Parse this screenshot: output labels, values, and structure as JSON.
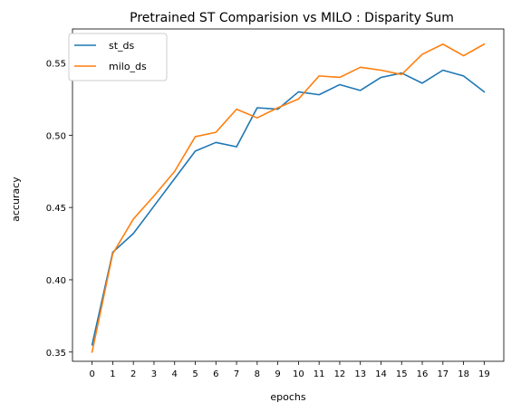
{
  "chart_data": {
    "type": "line",
    "title": "Pretrained ST Comparision vs MILO : Disparity Sum",
    "xlabel": "epochs",
    "ylabel": "accuracy",
    "x": [
      0,
      1,
      2,
      3,
      4,
      5,
      6,
      7,
      8,
      9,
      10,
      11,
      12,
      13,
      14,
      15,
      16,
      17,
      18,
      19
    ],
    "xticks": [
      "0",
      "1",
      "2",
      "3",
      "4",
      "5",
      "6",
      "7",
      "8",
      "9",
      "10",
      "11",
      "12",
      "13",
      "14",
      "15",
      "16",
      "17",
      "18",
      "19"
    ],
    "yticks": [
      0.35,
      0.4,
      0.45,
      0.5,
      0.55
    ],
    "ytick_labels": [
      "0.35",
      "0.40",
      "0.45",
      "0.50",
      "0.55"
    ],
    "xlim": [
      -0.95,
      19.95
    ],
    "ylim": [
      0.3436,
      0.5735
    ],
    "grid": false,
    "legend_position": "top-left",
    "series": [
      {
        "name": "st_ds",
        "color": "#1f77b4",
        "values": [
          0.355,
          0.419,
          0.432,
          0.451,
          0.47,
          0.489,
          0.495,
          0.492,
          0.519,
          0.518,
          0.53,
          0.528,
          0.535,
          0.531,
          0.54,
          0.543,
          0.536,
          0.545,
          0.541,
          0.53
        ]
      },
      {
        "name": "milo_ds",
        "color": "#ff7f0e",
        "values": [
          0.35,
          0.418,
          0.442,
          0.458,
          0.475,
          0.499,
          0.502,
          0.518,
          0.512,
          0.519,
          0.525,
          0.541,
          0.54,
          0.547,
          0.545,
          0.542,
          0.556,
          0.563,
          0.555,
          0.563
        ]
      }
    ]
  }
}
